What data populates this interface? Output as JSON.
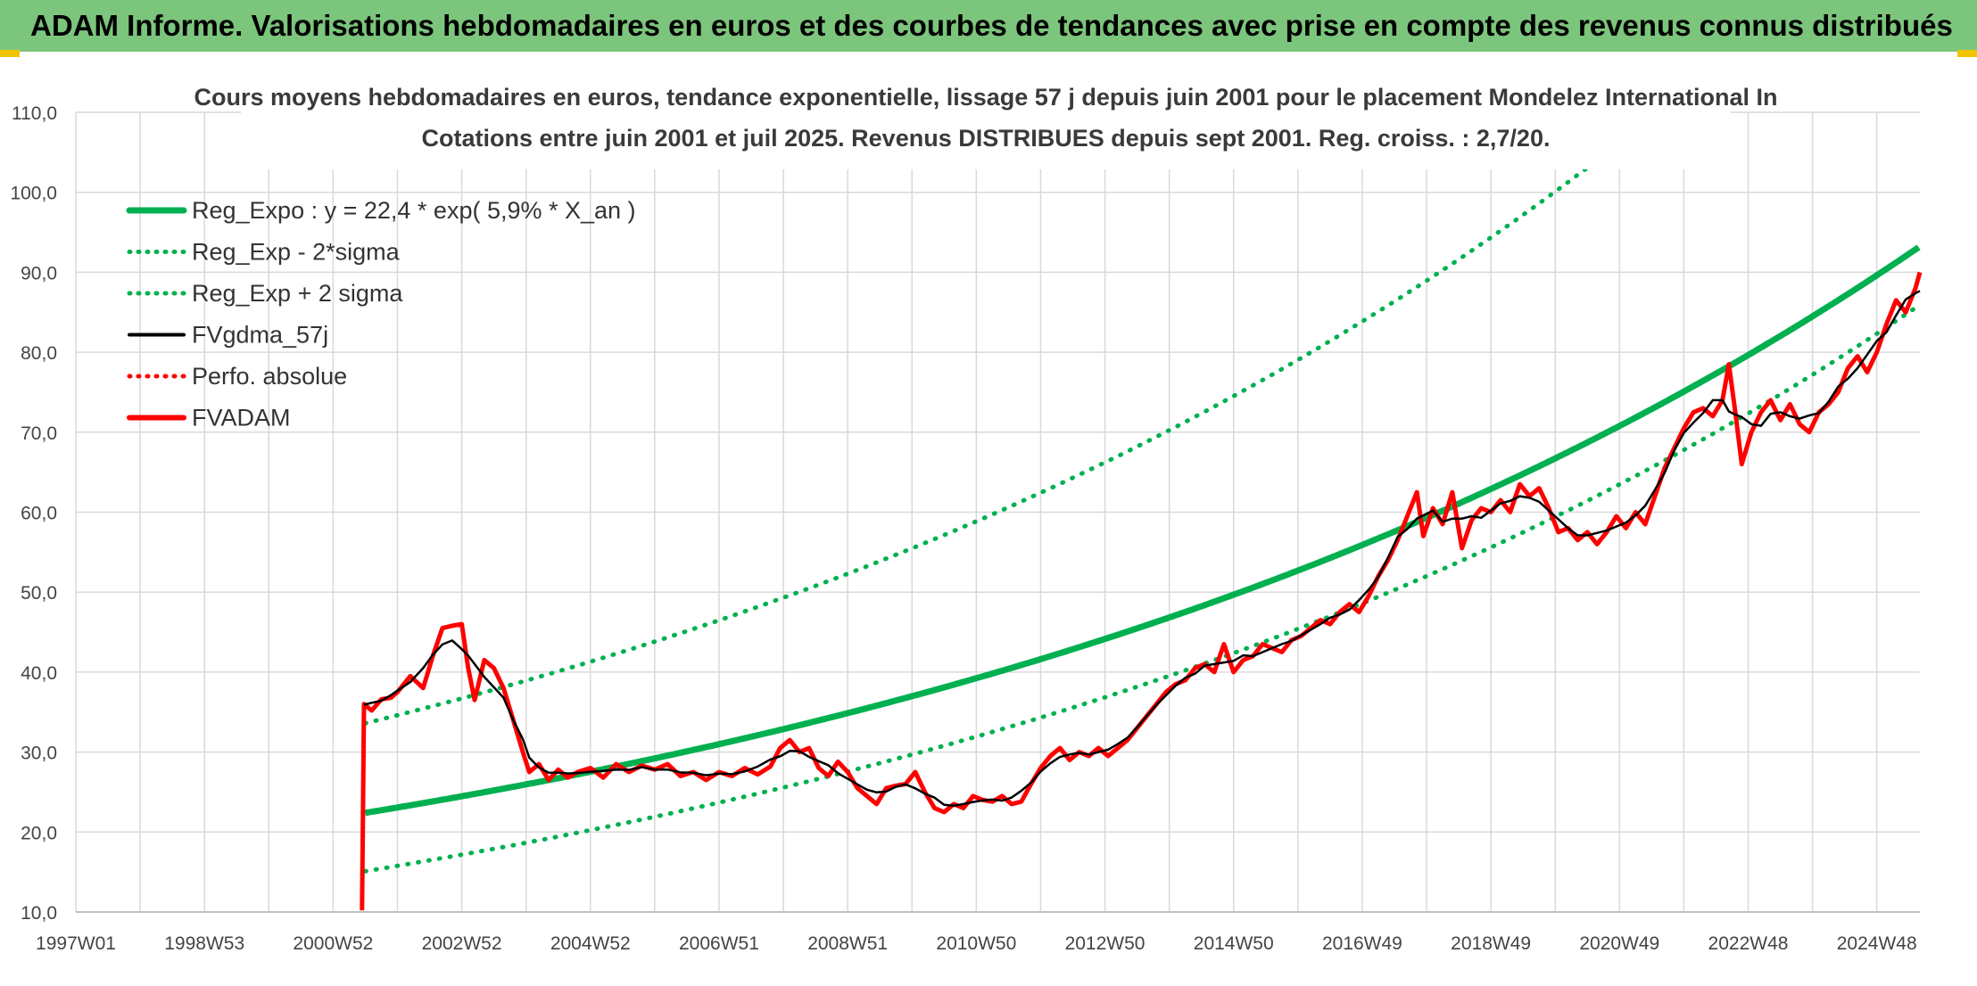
{
  "banner": {
    "title": "ADAM Informe. Valorisations hebdomadaires en euros et des courbes de tendances avec prise en compte des revenus connus distribués"
  },
  "colors": {
    "banner": "#7cc57c",
    "green": "#00b050",
    "red": "#ff0000",
    "black": "#000000",
    "grid": "#d9d9d9"
  },
  "chart_data": {
    "type": "line",
    "title": "Cours moyens hebdomadaires en euros, tendance exponentielle, lissage 57 j depuis juin 2001 pour le placement Mondelez International In",
    "subtitle": "Cotations entre juin 2001 et juil 2025. Revenus DISTRIBUES depuis sept 2001. Reg. croiss. : 2,7/20.",
    "xlabel": "",
    "ylabel": "",
    "ylim": [
      10,
      110
    ],
    "yticks": [
      "10,0",
      "20,0",
      "30,0",
      "40,0",
      "50,0",
      "60,0",
      "70,0",
      "80,0",
      "90,0",
      "100,0",
      "110,0"
    ],
    "xticks": [
      "1997W01",
      "1998W53",
      "2000W52",
      "2002W52",
      "2004W52",
      "2006W51",
      "2008W51",
      "2010W50",
      "2012W50",
      "2014W50",
      "2016W49",
      "2018W49",
      "2020W49",
      "2022W48",
      "2024W48"
    ],
    "xlim": [
      1997.0,
      2025.67
    ],
    "grid": true,
    "legend_position": "top-left",
    "legend": [
      {
        "label": "Reg_Expo : y = 22,4 * exp( 5,9% *  X_an )",
        "color": "#00b050",
        "style": "solid"
      },
      {
        "label": "Reg_Exp - 2*sigma",
        "color": "#00b050",
        "style": "dotted"
      },
      {
        "label": "Reg_Exp + 2 sigma",
        "color": "#00b050",
        "style": "dotted"
      },
      {
        "label": "FVgdma_57j",
        "color": "#000000",
        "style": "solid-thin"
      },
      {
        "label": "Perfo. absolue",
        "color": "#ff0000",
        "style": "dotted"
      },
      {
        "label": "FVADAM",
        "color": "#ff0000",
        "style": "solid"
      }
    ],
    "regression": {
      "x_start": 2001.5,
      "x_end": 2025.67,
      "base": 22.4,
      "rate": 0.059,
      "lower_offset": -7.3,
      "upper_factor": 1.5
    },
    "series": [
      {
        "name": "FVADAM",
        "points": [
          [
            2001.45,
            10.2
          ],
          [
            2001.48,
            36.0
          ],
          [
            2001.6,
            35.2
          ],
          [
            2001.75,
            36.6
          ],
          [
            2001.9,
            36.8
          ],
          [
            2002.0,
            37.5
          ],
          [
            2002.2,
            39.5
          ],
          [
            2002.4,
            38.0
          ],
          [
            2002.55,
            42.0
          ],
          [
            2002.7,
            45.5
          ],
          [
            2002.85,
            45.8
          ],
          [
            2003.0,
            46.0
          ],
          [
            2003.1,
            40.5
          ],
          [
            2003.2,
            36.5
          ],
          [
            2003.35,
            41.5
          ],
          [
            2003.5,
            40.5
          ],
          [
            2003.65,
            38.0
          ],
          [
            2003.8,
            34.0
          ],
          [
            2003.95,
            30.0
          ],
          [
            2004.05,
            27.5
          ],
          [
            2004.2,
            28.5
          ],
          [
            2004.35,
            26.5
          ],
          [
            2004.5,
            27.8
          ],
          [
            2004.65,
            26.8
          ],
          [
            2004.8,
            27.5
          ],
          [
            2005.0,
            28.0
          ],
          [
            2005.2,
            26.8
          ],
          [
            2005.4,
            28.5
          ],
          [
            2005.6,
            27.5
          ],
          [
            2005.8,
            28.3
          ],
          [
            2006.0,
            27.8
          ],
          [
            2006.2,
            28.5
          ],
          [
            2006.4,
            27.0
          ],
          [
            2006.6,
            27.5
          ],
          [
            2006.8,
            26.5
          ],
          [
            2007.0,
            27.5
          ],
          [
            2007.2,
            27.0
          ],
          [
            2007.4,
            28.0
          ],
          [
            2007.6,
            27.2
          ],
          [
            2007.8,
            28.2
          ],
          [
            2007.95,
            30.5
          ],
          [
            2008.1,
            31.5
          ],
          [
            2008.25,
            30.0
          ],
          [
            2008.4,
            30.5
          ],
          [
            2008.55,
            28.0
          ],
          [
            2008.7,
            27.0
          ],
          [
            2008.85,
            28.8
          ],
          [
            2009.0,
            27.5
          ],
          [
            2009.15,
            25.5
          ],
          [
            2009.3,
            24.5
          ],
          [
            2009.45,
            23.5
          ],
          [
            2009.6,
            25.5
          ],
          [
            2009.75,
            25.8
          ],
          [
            2009.9,
            26.0
          ],
          [
            2010.05,
            27.5
          ],
          [
            2010.2,
            25.0
          ],
          [
            2010.35,
            23.0
          ],
          [
            2010.5,
            22.5
          ],
          [
            2010.65,
            23.5
          ],
          [
            2010.8,
            23.0
          ],
          [
            2010.95,
            24.5
          ],
          [
            2011.1,
            24.0
          ],
          [
            2011.25,
            23.8
          ],
          [
            2011.4,
            24.5
          ],
          [
            2011.55,
            23.5
          ],
          [
            2011.7,
            23.8
          ],
          [
            2011.85,
            26.0
          ],
          [
            2012.0,
            28.0
          ],
          [
            2012.15,
            29.5
          ],
          [
            2012.3,
            30.5
          ],
          [
            2012.45,
            29.0
          ],
          [
            2012.6,
            30.0
          ],
          [
            2012.75,
            29.5
          ],
          [
            2012.9,
            30.5
          ],
          [
            2013.05,
            29.5
          ],
          [
            2013.2,
            30.5
          ],
          [
            2013.35,
            31.5
          ],
          [
            2013.5,
            33.0
          ],
          [
            2013.65,
            34.5
          ],
          [
            2013.8,
            36.0
          ],
          [
            2013.95,
            37.5
          ],
          [
            2014.1,
            38.5
          ],
          [
            2014.25,
            39.0
          ],
          [
            2014.4,
            40.5
          ],
          [
            2014.55,
            41.0
          ],
          [
            2014.7,
            40.0
          ],
          [
            2014.85,
            43.5
          ],
          [
            2015.0,
            40.0
          ],
          [
            2015.15,
            41.5
          ],
          [
            2015.3,
            42.0
          ],
          [
            2015.45,
            43.5
          ],
          [
            2015.6,
            43.0
          ],
          [
            2015.75,
            42.5
          ],
          [
            2015.9,
            44.0
          ],
          [
            2016.05,
            44.5
          ],
          [
            2016.2,
            45.5
          ],
          [
            2016.35,
            46.5
          ],
          [
            2016.5,
            46.0
          ],
          [
            2016.65,
            47.5
          ],
          [
            2016.8,
            48.5
          ],
          [
            2016.95,
            47.5
          ],
          [
            2017.1,
            49.5
          ],
          [
            2017.25,
            52.0
          ],
          [
            2017.4,
            54.0
          ],
          [
            2017.55,
            56.5
          ],
          [
            2017.7,
            59.5
          ],
          [
            2017.85,
            62.5
          ],
          [
            2017.95,
            57.0
          ],
          [
            2018.1,
            60.5
          ],
          [
            2018.25,
            58.5
          ],
          [
            2018.4,
            62.5
          ],
          [
            2018.55,
            55.5
          ],
          [
            2018.7,
            59.0
          ],
          [
            2018.85,
            60.5
          ],
          [
            2019.0,
            60.0
          ],
          [
            2019.15,
            61.5
          ],
          [
            2019.3,
            60.0
          ],
          [
            2019.45,
            63.5
          ],
          [
            2019.6,
            62.0
          ],
          [
            2019.75,
            63.0
          ],
          [
            2019.9,
            60.5
          ],
          [
            2020.05,
            57.5
          ],
          [
            2020.2,
            58.0
          ],
          [
            2020.35,
            56.5
          ],
          [
            2020.5,
            57.5
          ],
          [
            2020.65,
            56.0
          ],
          [
            2020.8,
            57.5
          ],
          [
            2020.95,
            59.5
          ],
          [
            2021.1,
            58.0
          ],
          [
            2021.25,
            60.0
          ],
          [
            2021.4,
            58.5
          ],
          [
            2021.55,
            62.0
          ],
          [
            2021.7,
            65.5
          ],
          [
            2021.85,
            68.0
          ],
          [
            2022.0,
            70.5
          ],
          [
            2022.15,
            72.5
          ],
          [
            2022.3,
            73.0
          ],
          [
            2022.45,
            72.0
          ],
          [
            2022.6,
            74.0
          ],
          [
            2022.7,
            78.5
          ],
          [
            2022.8,
            72.5
          ],
          [
            2022.9,
            66.0
          ],
          [
            2023.05,
            70.0
          ],
          [
            2023.2,
            72.5
          ],
          [
            2023.35,
            74.0
          ],
          [
            2023.5,
            71.5
          ],
          [
            2023.65,
            73.5
          ],
          [
            2023.8,
            71.0
          ],
          [
            2023.95,
            70.0
          ],
          [
            2024.1,
            72.5
          ],
          [
            2024.25,
            73.5
          ],
          [
            2024.4,
            75.0
          ],
          [
            2024.55,
            78.0
          ],
          [
            2024.7,
            79.5
          ],
          [
            2024.85,
            77.5
          ],
          [
            2025.0,
            80.0
          ],
          [
            2025.15,
            83.5
          ],
          [
            2025.3,
            86.5
          ],
          [
            2025.45,
            85.0
          ],
          [
            2025.6,
            88.0
          ],
          [
            2025.67,
            90.0
          ]
        ]
      }
    ]
  }
}
